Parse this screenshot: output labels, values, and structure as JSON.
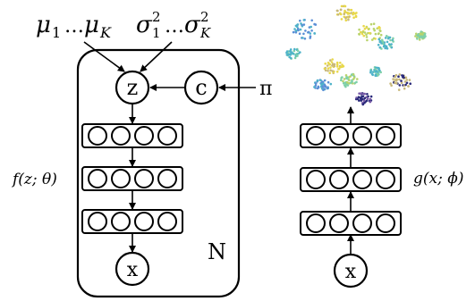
{
  "generative_model": {
    "mu_symbol": "μ",
    "mu_first_subscript": "1",
    "mu_ellipsis": "…",
    "mu_last_subscript": "K",
    "sigma_symbol": "σ",
    "sigma_superscript": "2",
    "sigma_first_subscript": "1",
    "sigma_ellipsis": "…",
    "sigma_last_subscript": "K",
    "latent_node": "z",
    "cluster_node": "c",
    "prior_label": "π",
    "decoder_label": "f(z; θ)",
    "observed_node": "x",
    "plate_label": "N"
  },
  "inference_model": {
    "encoder_label": "g(x; ϕ)",
    "input_node": "x"
  },
  "embedding_colors": [
    "#3a4fa0",
    "#5b8fd6",
    "#4fb3c9",
    "#7fd0a8",
    "#b9d36b",
    "#e8d84a",
    "#c8b87a",
    "#2a2a7a",
    "#7a5ca8"
  ]
}
